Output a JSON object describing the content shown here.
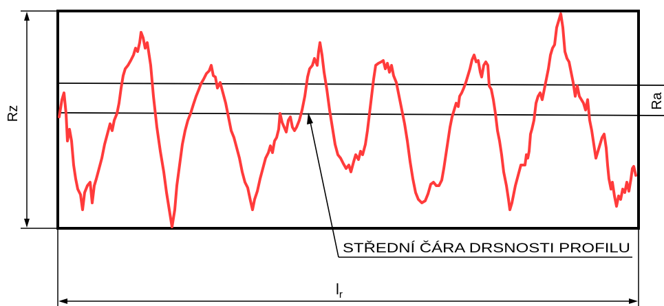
{
  "labels": {
    "rz": "Rz",
    "ra": "Ra",
    "lr_main": "l",
    "lr_sub": "r",
    "mean_line": "STŘEDNÍ ČÁRA DRSNOSTI PROFILU"
  },
  "colors": {
    "profile": "#ff3b3b",
    "lines": "#000000",
    "background": "#ffffff"
  }
}
